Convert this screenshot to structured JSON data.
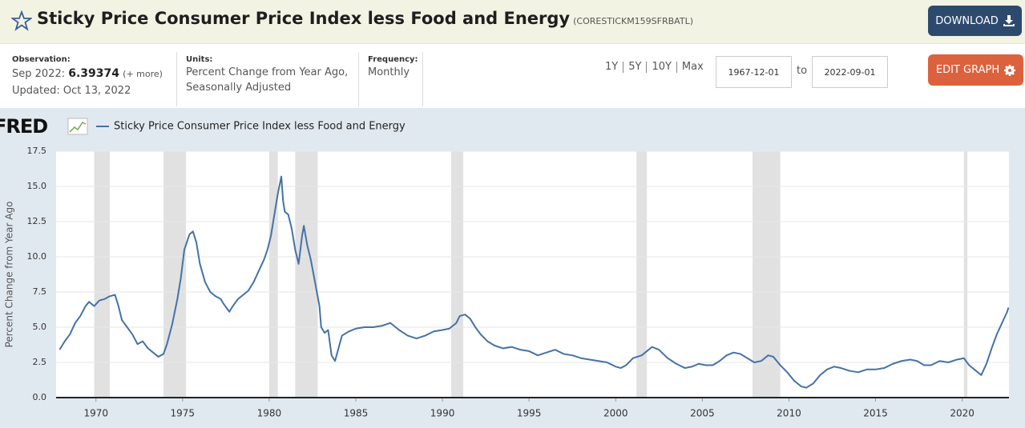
{
  "header": {
    "title": "Sticky Price Consumer Price Index less Food and Energy",
    "series_id": "(CORESTICKM159SFRBATL)",
    "download": "DOWNLOAD"
  },
  "info": {
    "observation_label": "Observation:",
    "observation_date": "Sep 2022:",
    "observation_value": 6.39374,
    "more": "(+ more)",
    "updated": "Updated: Oct 13, 2022",
    "units_label": "Units:",
    "units": [
      "Percent Change from Year Ago,",
      "Seasonally Adjusted"
    ],
    "frequency_label": "Frequency:",
    "frequency": "Monthly"
  },
  "controls": {
    "ranges": [
      "1Y",
      "5Y",
      "10Y",
      "Max"
    ],
    "start_date": "1967-12-01",
    "to": "to",
    "end_date": "2022-09-01",
    "edit": "EDIT GRAPH"
  },
  "logo": "FRED",
  "chart_data": {
    "type": "line",
    "y_label": "Percent Change from Year Ago",
    "xlim": [
      1967.7,
      2022.7
    ],
    "xticks": [
      1970,
      1975,
      1980,
      1985,
      1990,
      1995,
      2000,
      2005,
      2010,
      2015,
      2020
    ],
    "ylim": [
      0,
      17.5
    ],
    "yticks": [
      {
        "value": 0,
        "label": "0.0"
      },
      2.5,
      {
        "value": 5,
        "label": "5.0"
      },
      7.5,
      {
        "value": 10,
        "label": "10.0"
      },
      12.5,
      {
        "value": 15,
        "label": "15.0"
      },
      17.5
    ],
    "grid": true,
    "recessions": [
      [
        1969.9,
        1970.8
      ],
      [
        1973.9,
        1975.2
      ],
      [
        1980.0,
        1980.5
      ],
      [
        1981.5,
        1982.8
      ],
      [
        1990.5,
        1991.2
      ],
      [
        2001.2,
        2001.8
      ],
      [
        2007.9,
        2009.5
      ],
      [
        2020.1,
        2020.3
      ]
    ],
    "x": [
      1967.9,
      1968.2,
      1968.5,
      1968.8,
      1969.1,
      1969.4,
      1969.6,
      1969.9,
      1970.2,
      1970.5,
      1970.8,
      1971.1,
      1971.3,
      1971.5,
      1971.8,
      1972.1,
      1972.4,
      1972.7,
      1973.0,
      1973.3,
      1973.6,
      1973.9,
      1974.1,
      1974.4,
      1974.7,
      1974.9,
      1975.1,
      1975.4,
      1975.6,
      1975.8,
      1976.0,
      1976.3,
      1976.6,
      1976.9,
      1977.2,
      1977.4,
      1977.7,
      1977.9,
      1978.2,
      1978.5,
      1978.8,
      1979.1,
      1979.4,
      1979.7,
      1979.9,
      1980.1,
      1980.3,
      1980.5,
      1980.7,
      1980.8,
      1980.9,
      1981.1,
      1981.3,
      1981.5,
      1981.7,
      1981.9,
      1982.0,
      1982.2,
      1982.4,
      1982.6,
      1982.9,
      1983.0,
      1983.2,
      1983.4,
      1983.6,
      1983.8,
      1984.0,
      1984.2,
      1984.6,
      1985.0,
      1985.5,
      1986.0,
      1986.5,
      1987.0,
      1987.5,
      1988.0,
      1988.5,
      1989.0,
      1989.5,
      1990.0,
      1990.4,
      1990.8,
      1991.0,
      1991.3,
      1991.6,
      1991.9,
      1992.2,
      1992.6,
      1993.0,
      1993.5,
      1994.0,
      1994.5,
      1995.0,
      1995.5,
      1996.0,
      1996.5,
      1997.0,
      1997.5,
      1998.0,
      1998.5,
      1999.0,
      1999.5,
      2000.0,
      2000.3,
      2000.6,
      2001.0,
      2001.5,
      2001.8,
      2002.1,
      2002.5,
      2003.0,
      2003.5,
      2004.0,
      2004.4,
      2004.8,
      2005.2,
      2005.6,
      2006.0,
      2006.4,
      2006.8,
      2007.2,
      2007.6,
      2008.0,
      2008.4,
      2008.8,
      2009.1,
      2009.5,
      2009.9,
      2010.3,
      2010.7,
      2011.0,
      2011.4,
      2011.8,
      2012.2,
      2012.6,
      2013.0,
      2013.5,
      2014.0,
      2014.5,
      2015.0,
      2015.5,
      2016.0,
      2016.5,
      2017.0,
      2017.4,
      2017.8,
      2018.2,
      2018.7,
      2019.2,
      2019.7,
      2020.1,
      2020.4,
      2020.8,
      2021.1,
      2021.4,
      2021.7,
      2022.0,
      2022.3,
      2022.6,
      2022.67
    ],
    "series": [
      {
        "name": "Sticky Price Consumer Price Index less Food and Energy",
        "color": "#4572a7",
        "values": [
          3.4,
          4.0,
          4.5,
          5.3,
          5.8,
          6.5,
          6.8,
          6.5,
          6.9,
          7.0,
          7.2,
          7.3,
          6.5,
          5.5,
          5.0,
          4.5,
          3.8,
          4.0,
          3.5,
          3.2,
          2.9,
          3.1,
          3.8,
          5.2,
          7.0,
          8.5,
          10.5,
          11.6,
          11.8,
          11.0,
          9.5,
          8.2,
          7.5,
          7.2,
          7.0,
          6.6,
          6.1,
          6.5,
          7.0,
          7.3,
          7.6,
          8.2,
          9.0,
          9.8,
          10.5,
          11.5,
          13.0,
          14.5,
          15.7,
          14.0,
          13.2,
          13.0,
          12.0,
          10.5,
          9.5,
          11.5,
          12.2,
          10.8,
          9.8,
          8.5,
          6.5,
          5.0,
          4.6,
          4.8,
          3.0,
          2.6,
          3.5,
          4.4,
          4.7,
          4.9,
          5.0,
          5.0,
          5.1,
          5.3,
          4.8,
          4.4,
          4.2,
          4.4,
          4.7,
          4.8,
          4.9,
          5.3,
          5.8,
          5.9,
          5.6,
          5.0,
          4.5,
          4.0,
          3.7,
          3.5,
          3.6,
          3.4,
          3.3,
          3.0,
          3.2,
          3.4,
          3.1,
          3.0,
          2.8,
          2.7,
          2.6,
          2.5,
          2.2,
          2.1,
          2.3,
          2.8,
          3.0,
          3.3,
          3.6,
          3.4,
          2.8,
          2.4,
          2.1,
          2.2,
          2.4,
          2.3,
          2.3,
          2.6,
          3.0,
          3.2,
          3.1,
          2.8,
          2.5,
          2.6,
          3.0,
          2.9,
          2.3,
          1.8,
          1.2,
          0.8,
          0.7,
          1.0,
          1.6,
          2.0,
          2.2,
          2.1,
          1.9,
          1.8,
          2.0,
          2.0,
          2.1,
          2.4,
          2.6,
          2.7,
          2.6,
          2.3,
          2.3,
          2.6,
          2.5,
          2.7,
          2.8,
          2.3,
          1.9,
          1.6,
          2.4,
          3.5,
          4.5,
          5.3,
          6.1,
          6.39374
        ]
      }
    ]
  }
}
